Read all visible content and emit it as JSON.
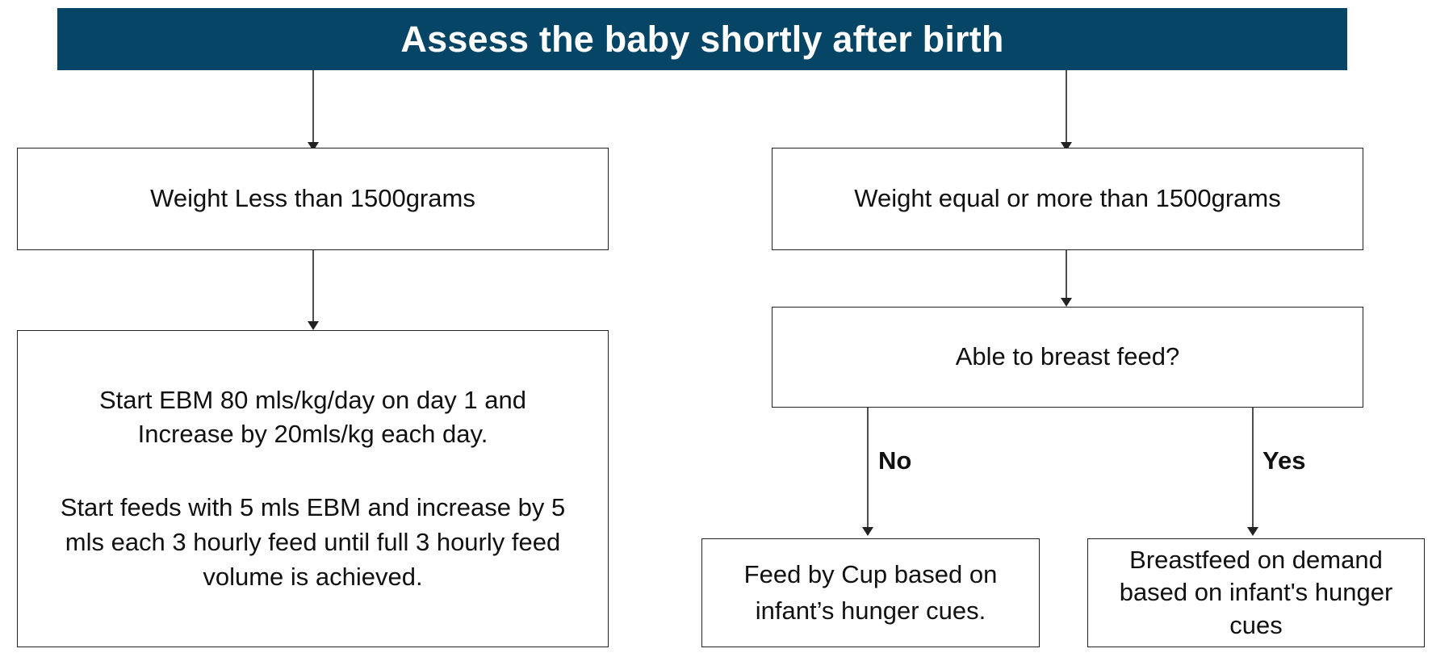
{
  "colors": {
    "header_bg": "#064566",
    "header_text": "#ffffff",
    "line": "#222222"
  },
  "header": {
    "title": "Assess the baby shortly after birth"
  },
  "left": {
    "weight_box": "Weight Less than 1500grams",
    "instructions": {
      "para1_line1": "Start EBM 80 mls/kg/day on day 1 and",
      "para1_line2": "Increase by 20mls/kg each day.",
      "para2_line1": "Start feeds with 5 mls EBM and increase by 5",
      "para2_line2": "mls each 3 hourly feed until full 3 hourly feed",
      "para2_line3": "volume is achieved."
    }
  },
  "right": {
    "weight_box": "Weight equal or more than 1500grams",
    "question_box": "Able to breast feed?",
    "no_label": "No",
    "yes_label": "Yes",
    "cup_box": {
      "line1": "Feed by Cup based on",
      "line2": "infant’s hunger cues."
    },
    "breastfeed_box": {
      "line1": "Breastfeed on demand",
      "line2": "based on infant's hunger",
      "line3": "cues"
    }
  }
}
